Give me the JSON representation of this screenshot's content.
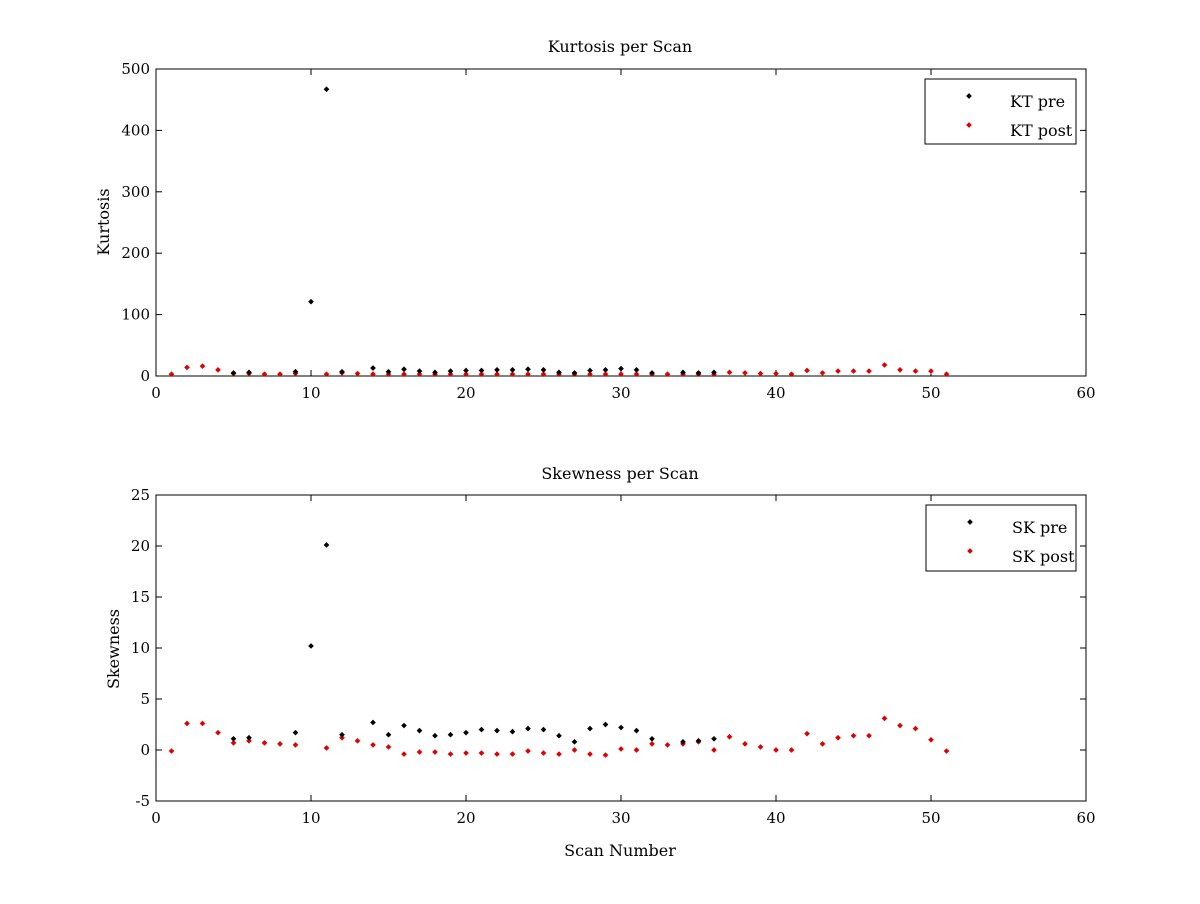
{
  "chart_data": [
    {
      "type": "scatter",
      "title": "Kurtosis per Scan",
      "xlabel": "",
      "ylabel": "Kurtosis",
      "xlim": [
        0,
        60
      ],
      "ylim": [
        0,
        500
      ],
      "xticks": [
        0,
        10,
        20,
        30,
        40,
        50,
        60
      ],
      "yticks": [
        0,
        100,
        200,
        300,
        400,
        500
      ],
      "grid": false,
      "legend_position": "top-right",
      "series": [
        {
          "name": "KT pre",
          "color": "#000000",
          "x": [
            5,
            6,
            9,
            10,
            11,
            12,
            14,
            15,
            16,
            17,
            18,
            19,
            20,
            21,
            22,
            23,
            24,
            25,
            26,
            27,
            28,
            29,
            30,
            31,
            32,
            34,
            35,
            36
          ],
          "y": [
            5,
            6,
            7,
            121,
            467,
            7,
            13,
            7,
            11,
            8,
            6,
            8,
            9,
            9,
            10,
            10,
            11,
            10,
            6,
            5,
            9,
            10,
            12,
            10,
            5,
            6,
            5,
            6
          ]
        },
        {
          "name": "KT post",
          "color": "#e00000",
          "x": [
            1,
            2,
            3,
            4,
            5,
            6,
            7,
            8,
            9,
            11,
            12,
            13,
            14,
            15,
            16,
            17,
            18,
            19,
            20,
            21,
            22,
            23,
            24,
            25,
            26,
            27,
            28,
            29,
            30,
            31,
            32,
            33,
            34,
            35,
            36,
            37,
            38,
            39,
            40,
            41,
            42,
            43,
            44,
            45,
            46,
            47,
            48,
            49,
            50,
            51
          ],
          "y": [
            3,
            14,
            16,
            10,
            4,
            4,
            3,
            3,
            4,
            3,
            5,
            4,
            3,
            3,
            3,
            3,
            3,
            3,
            3,
            3,
            3,
            3,
            3,
            3,
            3,
            3,
            3,
            3,
            3,
            3,
            3,
            3,
            3,
            3,
            3,
            6,
            5,
            4,
            4,
            3,
            9,
            5,
            8,
            8,
            8,
            18,
            10,
            8,
            8,
            3
          ]
        }
      ]
    },
    {
      "type": "scatter",
      "title": "Skewness per Scan",
      "xlabel": "Scan Number",
      "ylabel": "Skewness",
      "xlim": [
        0,
        60
      ],
      "ylim": [
        -5,
        25
      ],
      "xticks": [
        0,
        10,
        20,
        30,
        40,
        50,
        60
      ],
      "yticks": [
        -5,
        0,
        5,
        10,
        15,
        20,
        25
      ],
      "grid": false,
      "legend_position": "top-right",
      "series": [
        {
          "name": "SK pre",
          "color": "#000000",
          "x": [
            5,
            6,
            9,
            10,
            11,
            12,
            14,
            15,
            16,
            17,
            18,
            19,
            20,
            21,
            22,
            23,
            24,
            25,
            26,
            27,
            28,
            29,
            30,
            31,
            32,
            34,
            35,
            36
          ],
          "y": [
            1.1,
            1.2,
            1.7,
            10.2,
            20.1,
            1.5,
            2.7,
            1.5,
            2.4,
            1.9,
            1.4,
            1.5,
            1.7,
            2.0,
            1.9,
            1.8,
            2.1,
            2.0,
            1.4,
            0.8,
            2.1,
            2.5,
            2.2,
            1.9,
            1.1,
            0.8,
            0.9,
            1.1
          ]
        },
        {
          "name": "SK post",
          "color": "#e00000",
          "x": [
            1,
            2,
            3,
            4,
            5,
            6,
            7,
            8,
            9,
            11,
            12,
            13,
            14,
            15,
            16,
            17,
            18,
            19,
            20,
            21,
            22,
            23,
            24,
            25,
            26,
            27,
            28,
            29,
            30,
            31,
            32,
            33,
            34,
            35,
            36,
            37,
            38,
            39,
            40,
            41,
            42,
            43,
            44,
            45,
            46,
            47,
            48,
            49,
            50,
            51
          ],
          "y": [
            -0.1,
            2.6,
            2.6,
            1.7,
            0.7,
            0.9,
            0.7,
            0.6,
            0.5,
            0.2,
            1.2,
            0.9,
            0.5,
            0.3,
            -0.4,
            -0.2,
            -0.2,
            -0.4,
            -0.3,
            -0.3,
            -0.4,
            -0.4,
            -0.1,
            -0.3,
            -0.4,
            0.0,
            -0.4,
            -0.5,
            0.1,
            0.0,
            0.6,
            0.5,
            0.6,
            0.8,
            0.0,
            1.3,
            0.6,
            0.3,
            0.0,
            0.0,
            1.6,
            0.6,
            1.2,
            1.4,
            1.4,
            3.1,
            2.4,
            2.1,
            1.0,
            -0.1
          ]
        }
      ]
    }
  ]
}
